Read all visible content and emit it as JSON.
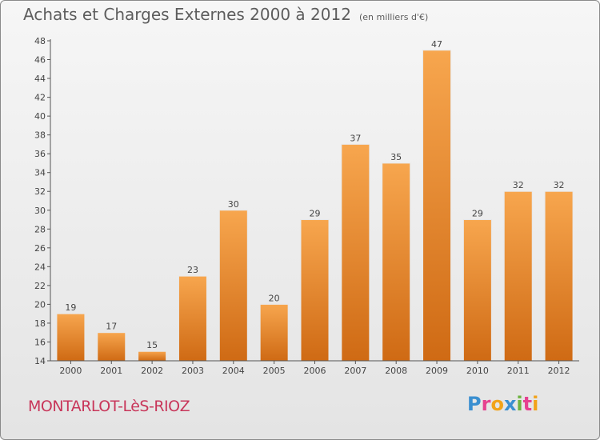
{
  "header": {
    "title": "Achats et Charges Externes 2000 à 2012",
    "unit": "(en milliers d'€)"
  },
  "footer": {
    "commune": "MONTARLOT-LèS-RIOZ",
    "logo_text": "Proxiti",
    "logo_letters": [
      {
        "char": "P",
        "color": "#3a8fd0"
      },
      {
        "char": "r",
        "color": "#e6418f"
      },
      {
        "char": "o",
        "color": "#f2a31a"
      },
      {
        "char": "x",
        "color": "#3a8fd0"
      },
      {
        "char": "i",
        "color": "#6db33f"
      },
      {
        "char": "t",
        "color": "#e6418f"
      },
      {
        "char": "i",
        "color": "#f2a31a"
      }
    ]
  },
  "chart_data": {
    "type": "bar",
    "title": "Achats et Charges Externes 2000 à 2012",
    "subtitle": "(en milliers d'€)",
    "xlabel": "",
    "ylabel": "",
    "categories": [
      "2000",
      "2001",
      "2002",
      "2003",
      "2004",
      "2005",
      "2006",
      "2007",
      "2008",
      "2009",
      "2010",
      "2011",
      "2012"
    ],
    "values": [
      19,
      17,
      15,
      23,
      30,
      20,
      29,
      37,
      35,
      47,
      29,
      32,
      32
    ],
    "data_labels": [
      "19",
      "17",
      "15",
      "23",
      "30",
      "20",
      "29",
      "37",
      "35",
      "47",
      "29",
      "32",
      "32"
    ],
    "ylim": [
      14,
      48
    ],
    "yticks": [
      14,
      16,
      18,
      20,
      22,
      24,
      26,
      28,
      30,
      32,
      34,
      36,
      38,
      40,
      42,
      44,
      46,
      48
    ],
    "ytick_labels": [
      "14",
      "16",
      "18",
      "20",
      "22",
      "24",
      "26",
      "28",
      "30",
      "32",
      "34",
      "36",
      "38",
      "40",
      "42",
      "44",
      "46",
      "48"
    ],
    "grid": false,
    "colors": {
      "bar_top": "#f7a64e",
      "bar_bottom": "#cf6a14",
      "axis": "#555555",
      "text": "#444444"
    }
  }
}
